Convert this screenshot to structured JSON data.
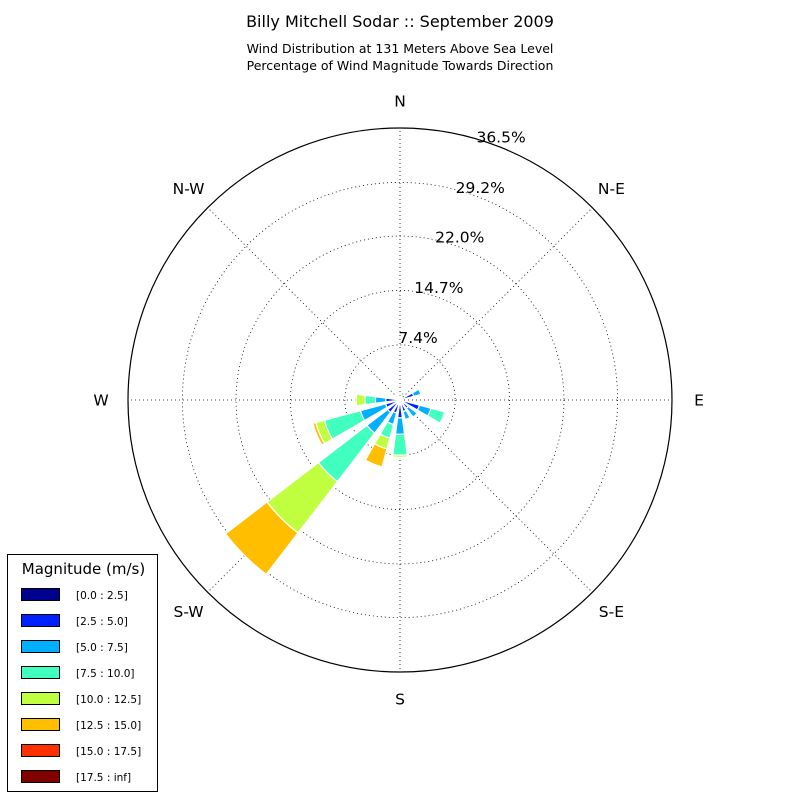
{
  "chart_data": {
    "type": "windrose",
    "title": "Billy Mitchell Sodar :: September 2009",
    "subtitle_lines": [
      "Wind Distribution at 131 Meters Above Sea Level",
      "Percentage of Wind Magnitude Towards Direction"
    ],
    "radial_max": 36.5,
    "radial_ticks": [
      7.4,
      14.7,
      22.0,
      29.2,
      36.5
    ],
    "radial_tick_labels": [
      "7.4%",
      "14.7%",
      "22.0%",
      "29.2%",
      "36.5%"
    ],
    "directions": [
      {
        "label": "N",
        "angle": 0
      },
      {
        "label": "N-E",
        "angle": 45
      },
      {
        "label": "E",
        "angle": 90
      },
      {
        "label": "S-E",
        "angle": 135
      },
      {
        "label": "S",
        "angle": 180
      },
      {
        "label": "S-W",
        "angle": 225
      },
      {
        "label": "W",
        "angle": 270
      },
      {
        "label": "N-W",
        "angle": 315
      }
    ],
    "legend_title": "Magnitude (m/s)",
    "bins": [
      {
        "label": "[0.0 : 2.5]",
        "color": "#00008f"
      },
      {
        "label": "[2.5 : 5.0]",
        "color": "#0020ff"
      },
      {
        "label": "[5.0 : 7.5]",
        "color": "#00afff"
      },
      {
        "label": "[7.5 : 10.0]",
        "color": "#40ffbf"
      },
      {
        "label": "[10.0 : 12.5]",
        "color": "#bfff40"
      },
      {
        "label": "[12.5 : 15.0]",
        "color": "#ffbf00"
      },
      {
        "label": "[15.0 : 17.5]",
        "color": "#ff3000"
      },
      {
        "label": "[17.5 : inf]",
        "color": "#800000"
      }
    ],
    "sector_width_deg": 15,
    "sectors": [
      {
        "direction": 0,
        "values": [
          0.3,
          0.2,
          0,
          0,
          0,
          0,
          0,
          0
        ]
      },
      {
        "direction": 22.5,
        "values": [
          0.3,
          0.3,
          0.5,
          0,
          0,
          0,
          0,
          0
        ]
      },
      {
        "direction": 67.5,
        "values": [
          0.4,
          1.5,
          1.0,
          0,
          0,
          0,
          0,
          0
        ]
      },
      {
        "direction": 112.5,
        "values": [
          0.4,
          2.3,
          1.6,
          1.9,
          0,
          0,
          0,
          0
        ]
      },
      {
        "direction": 135,
        "values": [
          0.4,
          1.0,
          1.5,
          0,
          0,
          0,
          0,
          0
        ]
      },
      {
        "direction": 157.5,
        "values": [
          0.4,
          1.2,
          1.1,
          0,
          0,
          0,
          0,
          0
        ]
      },
      {
        "direction": 180,
        "values": [
          0.3,
          2.1,
          2.2,
          2.8,
          0.3,
          0,
          0,
          0
        ]
      },
      {
        "direction": 202.5,
        "values": [
          0.3,
          1.5,
          1.6,
          1.9,
          1.5,
          2.5,
          0,
          0
        ]
      },
      {
        "direction": 225,
        "values": [
          0.4,
          1.7,
          3.5,
          8.2,
          8.7,
          7.0,
          0,
          0
        ]
      },
      {
        "direction": 247.5,
        "values": [
          0.4,
          1.6,
          3.5,
          5.0,
          1.2,
          0.4,
          0,
          0
        ]
      },
      {
        "direction": 270,
        "values": [
          0.4,
          1.5,
          1.4,
          1.4,
          1.2,
          0,
          0,
          0
        ]
      },
      {
        "direction": 315,
        "values": [
          0.3,
          0.3,
          0,
          0,
          0,
          0,
          0,
          0
        ]
      }
    ]
  }
}
